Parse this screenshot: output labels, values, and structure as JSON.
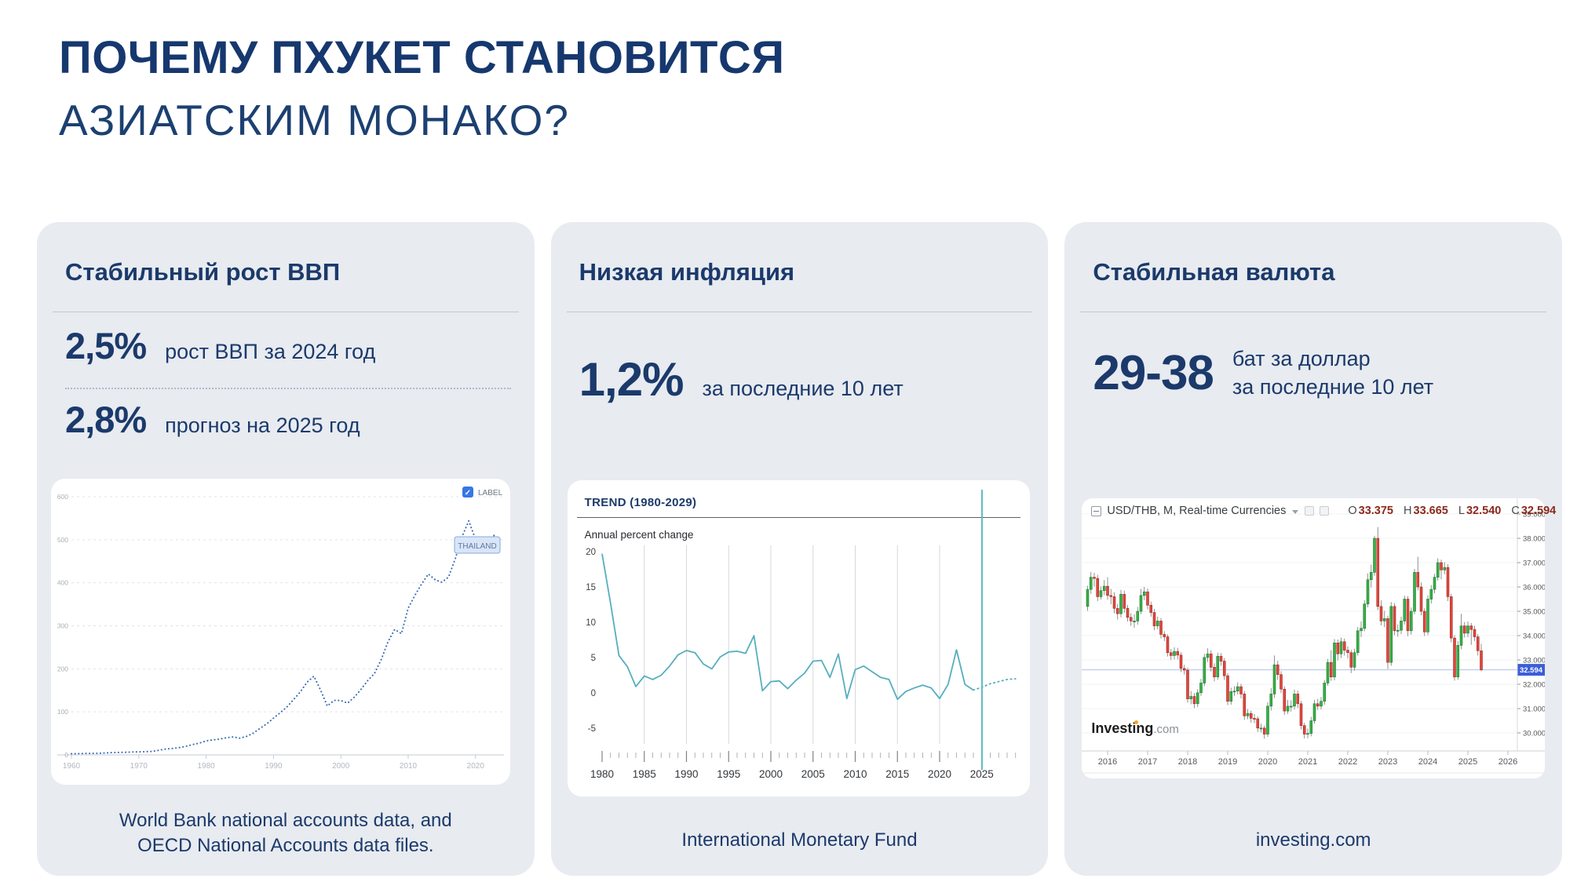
{
  "title": {
    "line1": "ПОЧЕМУ ПХУКЕТ СТАНОВИТСЯ",
    "line2": "АЗИАТСКИМ МОНАКО?"
  },
  "colors": {
    "navy": "#1b3a6b",
    "card_bg": "#e8ebf0",
    "gdp_line": "#3a6cb4",
    "inflation_line": "#56aebf",
    "candle_up": "#3aae46",
    "candle_up_border": "#1e7e35",
    "candle_down": "#e0473c",
    "candle_down_border": "#a32f26",
    "price_tag": "#3c5ed8",
    "checkbox_blue": "#3577e6"
  },
  "cards": [
    {
      "heading": "Стабильный рост ВВП",
      "stat1_value": "2,5%",
      "stat1_label": "рост ВВП за 2024 год",
      "stat2_value": "2,8%",
      "stat2_label": "прогноз на 2025 год",
      "source_line1": "World Bank national accounts data, and",
      "source_line2": "OECD National Accounts data files."
    },
    {
      "heading": "Низкая инфляция",
      "stat_value": "1,2%",
      "stat_label": "за последние 10 лет",
      "source": "International Monetary Fund"
    },
    {
      "heading": "Стабильная валюта",
      "stat_value": "29-38",
      "stat_label_line1": "бат за доллар",
      "stat_label_line2": "за последние 10 лет",
      "source": "investing.com"
    }
  ],
  "chart_data": [
    {
      "type": "line",
      "style": "dotted",
      "description": "Thailand GDP, current US$ billions, World Bank",
      "series_label": "THAILAND",
      "checkbox_label": "LABEL",
      "x_start": 1960,
      "values": [
        2.8,
        3.0,
        3.3,
        3.5,
        3.9,
        4.4,
        5.3,
        5.6,
        6.1,
        6.7,
        7.1,
        7.4,
        8.2,
        10.8,
        13.7,
        14.9,
        17.0,
        19.8,
        24.0,
        27.4,
        32.4,
        34.8,
        36.6,
        40.0,
        41.8,
        38.9,
        43.1,
        50.5,
        61.7,
        72.3,
        85.3,
        98.2,
        111.5,
        128.9,
        146.7,
        169.3,
        183.0,
        150.2,
        113.7,
        126.7,
        126.4,
        120.3,
        134.3,
        152.3,
        172.9,
        189.3,
        221.8,
        262.9,
        291.4,
        281.7,
        341.1,
        370.8,
        397.6,
        420.3,
        407.3,
        401.3,
        413.4,
        456.4,
        507.0,
        544.0,
        500.5,
        505.9,
        495.3,
        515.0
      ],
      "yticks": [
        0,
        100,
        200,
        300,
        400,
        500,
        600
      ],
      "xticks": [
        1960,
        1970,
        1980,
        1990,
        2000,
        2010,
        2020
      ],
      "ylim": [
        0,
        630
      ],
      "line_color": "#3a6cb4"
    },
    {
      "type": "line",
      "title": "TREND (1980-2029)",
      "note": "Annual percent change",
      "description": "Thailand inflation, IMF, actual 1980-2024 plus dotted forecast to 2029",
      "x_start": 1980,
      "values_actual": [
        19.7,
        12.7,
        5.3,
        3.7,
        0.9,
        2.4,
        1.9,
        2.5,
        3.8,
        5.4,
        6.0,
        5.7,
        4.1,
        3.4,
        5.1,
        5.8,
        5.9,
        5.6,
        8.1,
        0.3,
        1.6,
        1.7,
        0.6,
        1.8,
        2.8,
        4.5,
        4.6,
        2.2,
        5.5,
        -0.8,
        3.3,
        3.8,
        3.0,
        2.2,
        1.9,
        -0.9,
        0.2,
        0.7,
        1.1,
        0.7,
        -0.8,
        1.2,
        6.1,
        1.2,
        0.4
      ],
      "forecast_start": 2024,
      "values_forecast": [
        0.4,
        0.8,
        1.3,
        1.6,
        1.9,
        2.0
      ],
      "yticks": [
        20,
        15,
        10,
        5,
        0,
        -5
      ],
      "xticks": [
        1980,
        1985,
        1990,
        1995,
        2000,
        2005,
        2010,
        2015,
        2020,
        2025
      ],
      "grid_years": [
        1985,
        1990,
        1995,
        2000,
        2005,
        2010,
        2015,
        2020
      ],
      "current_year_line": 2025,
      "ylim": [
        -5,
        20
      ],
      "line_color": "#56aebf"
    },
    {
      "type": "candlestick",
      "header": {
        "symbol": "USD/THB, M, Real-time Currencies",
        "o_label": "O",
        "o": "33.375",
        "h_label": "H",
        "h": "33.665",
        "l_label": "L",
        "l": "32.540",
        "c_label": "C",
        "c": "32.594"
      },
      "watermark": {
        "bold": "Investing",
        "suffix": ".com"
      },
      "interval": "monthly",
      "start_month": "2015-07",
      "last_price": "32.594",
      "last_price_value": 32.594,
      "ytick_values": [
        30,
        31,
        32,
        33,
        34,
        35,
        36,
        37,
        38,
        39
      ],
      "yticks": [
        "30.000",
        "31.000",
        "32.000",
        "33.000",
        "34.000",
        "35.000",
        "36.000",
        "37.000",
        "38.000",
        "39.000"
      ],
      "xticks": [
        2016,
        2017,
        2018,
        2019,
        2020,
        2021,
        2022,
        2023,
        2024,
        2025,
        2026
      ],
      "ylim": [
        29.4,
        39.4
      ],
      "candles": [
        [
          35.2,
          36.05,
          35.02,
          35.9
        ],
        [
          35.9,
          36.62,
          35.72,
          36.4
        ],
        [
          36.4,
          36.58,
          36.02,
          36.35
        ],
        [
          36.35,
          36.5,
          35.42,
          35.6
        ],
        [
          35.6,
          36.02,
          35.48,
          35.85
        ],
        [
          35.85,
          36.28,
          35.66,
          36.03
        ],
        [
          36.03,
          36.4,
          35.48,
          35.65
        ],
        [
          35.65,
          35.92,
          35.28,
          35.6
        ],
        [
          35.6,
          35.78,
          34.92,
          35.12
        ],
        [
          35.12,
          35.3,
          34.66,
          34.9
        ],
        [
          34.9,
          35.88,
          34.75,
          35.7
        ],
        [
          35.7,
          35.85,
          34.94,
          35.12
        ],
        [
          35.12,
          35.26,
          34.58,
          34.75
        ],
        [
          34.75,
          34.92,
          34.4,
          34.6
        ],
        [
          34.6,
          34.88,
          34.32,
          34.6
        ],
        [
          34.6,
          35.18,
          34.45,
          35.0
        ],
        [
          35.0,
          35.92,
          34.88,
          35.65
        ],
        [
          35.65,
          36.0,
          35.46,
          35.8
        ],
        [
          35.8,
          35.94,
          35.08,
          35.25
        ],
        [
          35.25,
          35.4,
          34.78,
          34.95
        ],
        [
          34.95,
          35.1,
          34.22,
          34.4
        ],
        [
          34.4,
          34.78,
          34.26,
          34.6
        ],
        [
          34.6,
          34.72,
          33.88,
          34.05
        ],
        [
          34.05,
          34.18,
          33.78,
          33.95
        ],
        [
          33.95,
          34.05,
          33.14,
          33.3
        ],
        [
          33.3,
          33.45,
          33.0,
          33.18
        ],
        [
          33.18,
          33.52,
          33.02,
          33.35
        ],
        [
          33.35,
          33.5,
          33.02,
          33.2
        ],
        [
          33.2,
          33.32,
          32.5,
          32.65
        ],
        [
          32.65,
          32.8,
          32.4,
          32.58
        ],
        [
          32.58,
          32.68,
          31.24,
          31.4
        ],
        [
          31.4,
          31.72,
          31.18,
          31.5
        ],
        [
          31.5,
          31.64,
          31.02,
          31.2
        ],
        [
          31.2,
          31.8,
          31.06,
          31.65
        ],
        [
          31.65,
          32.22,
          31.52,
          32.05
        ],
        [
          32.05,
          33.25,
          31.92,
          33.1
        ],
        [
          33.1,
          33.48,
          32.92,
          33.25
        ],
        [
          33.25,
          33.4,
          32.52,
          32.7
        ],
        [
          32.7,
          32.86,
          32.12,
          32.3
        ],
        [
          32.3,
          33.3,
          32.18,
          33.15
        ],
        [
          33.15,
          33.28,
          32.76,
          32.95
        ],
        [
          32.95,
          33.08,
          32.18,
          32.35
        ],
        [
          32.35,
          32.46,
          31.14,
          31.3
        ],
        [
          31.3,
          31.86,
          31.16,
          31.7
        ],
        [
          31.7,
          31.92,
          31.52,
          31.72
        ],
        [
          31.72,
          32.08,
          31.58,
          31.9
        ],
        [
          31.9,
          32.02,
          31.42,
          31.6
        ],
        [
          31.6,
          31.72,
          30.54,
          30.7
        ],
        [
          30.7,
          30.98,
          30.56,
          30.8
        ],
        [
          30.8,
          30.92,
          30.42,
          30.6
        ],
        [
          30.6,
          30.78,
          30.4,
          30.58
        ],
        [
          30.58,
          30.68,
          30.04,
          30.2
        ],
        [
          30.2,
          30.38,
          30.02,
          30.2
        ],
        [
          30.2,
          30.3,
          29.76,
          29.95
        ],
        [
          29.95,
          31.26,
          29.84,
          31.1
        ],
        [
          31.1,
          31.84,
          30.92,
          31.6
        ],
        [
          31.6,
          33.18,
          31.44,
          32.8
        ],
        [
          32.8,
          32.96,
          32.18,
          32.4
        ],
        [
          32.4,
          32.54,
          31.64,
          31.8
        ],
        [
          31.8,
          31.92,
          30.74,
          30.9
        ],
        [
          30.9,
          31.36,
          30.78,
          31.1
        ],
        [
          31.1,
          31.34,
          30.88,
          31.1
        ],
        [
          31.1,
          31.78,
          30.96,
          31.6
        ],
        [
          31.6,
          31.74,
          31.02,
          31.2
        ],
        [
          31.2,
          31.32,
          30.14,
          30.3
        ],
        [
          30.3,
          30.42,
          29.77,
          29.95
        ],
        [
          29.95,
          30.18,
          29.78,
          29.98
        ],
        [
          29.98,
          30.66,
          29.86,
          30.5
        ],
        [
          30.5,
          31.36,
          30.38,
          31.2
        ],
        [
          31.2,
          31.4,
          30.94,
          31.1
        ],
        [
          31.1,
          31.48,
          30.96,
          31.3
        ],
        [
          31.3,
          32.18,
          31.16,
          32.05
        ],
        [
          32.05,
          33.04,
          31.94,
          32.9
        ],
        [
          32.9,
          33.4,
          32.14,
          32.3
        ],
        [
          32.3,
          33.86,
          32.16,
          33.7
        ],
        [
          33.7,
          33.84,
          32.98,
          33.25
        ],
        [
          33.25,
          33.92,
          33.08,
          33.75
        ],
        [
          33.75,
          33.88,
          33.18,
          33.4
        ],
        [
          33.4,
          33.56,
          33.06,
          33.3
        ],
        [
          33.3,
          33.42,
          32.46,
          32.7
        ],
        [
          32.7,
          33.46,
          32.56,
          33.3
        ],
        [
          33.3,
          34.36,
          33.18,
          34.2
        ],
        [
          34.2,
          34.58,
          33.94,
          34.3
        ],
        [
          34.3,
          35.46,
          34.18,
          35.3
        ],
        [
          35.3,
          36.56,
          35.16,
          36.3
        ],
        [
          36.3,
          36.92,
          35.98,
          36.6
        ],
        [
          36.6,
          38.1,
          36.46,
          38.0
        ],
        [
          38.0,
          38.46,
          35.05,
          35.2
        ],
        [
          35.2,
          35.45,
          34.42,
          34.6
        ],
        [
          34.6,
          35.02,
          34.35,
          34.7
        ],
        [
          34.7,
          34.82,
          32.62,
          32.9
        ],
        [
          32.9,
          35.38,
          32.76,
          35.2
        ],
        [
          35.2,
          35.34,
          34.02,
          34.2
        ],
        [
          34.2,
          34.46,
          33.96,
          34.22
        ],
        [
          34.22,
          34.78,
          34.06,
          34.6
        ],
        [
          34.6,
          35.64,
          34.46,
          35.5
        ],
        [
          35.5,
          35.62,
          33.98,
          34.2
        ],
        [
          34.2,
          35.16,
          34.04,
          35.0
        ],
        [
          35.0,
          36.74,
          34.88,
          36.6
        ],
        [
          36.6,
          37.24,
          35.86,
          36.0
        ],
        [
          36.0,
          36.18,
          34.84,
          35.0
        ],
        [
          35.0,
          35.12,
          33.98,
          34.15
        ],
        [
          34.15,
          35.66,
          34.02,
          35.5
        ],
        [
          35.5,
          36.08,
          35.32,
          35.9
        ],
        [
          35.9,
          36.54,
          35.74,
          36.4
        ],
        [
          36.4,
          37.18,
          36.26,
          37.0
        ],
        [
          37.0,
          37.12,
          36.32,
          36.7
        ],
        [
          36.7,
          37.02,
          36.52,
          36.8
        ],
        [
          36.8,
          36.94,
          35.42,
          35.6
        ],
        [
          35.6,
          35.72,
          33.72,
          33.9
        ],
        [
          33.9,
          34.02,
          32.15,
          32.3
        ],
        [
          32.3,
          33.78,
          32.18,
          33.6
        ],
        [
          33.6,
          34.9,
          33.44,
          34.4
        ],
        [
          34.4,
          34.56,
          33.92,
          34.1
        ],
        [
          34.1,
          34.58,
          33.94,
          34.4
        ],
        [
          34.4,
          34.52,
          33.62,
          34.25
        ],
        [
          34.25,
          34.4,
          33.78,
          33.95
        ],
        [
          33.95,
          34.06,
          33.18,
          33.38
        ],
        [
          33.375,
          33.665,
          32.54,
          32.594
        ]
      ]
    }
  ]
}
